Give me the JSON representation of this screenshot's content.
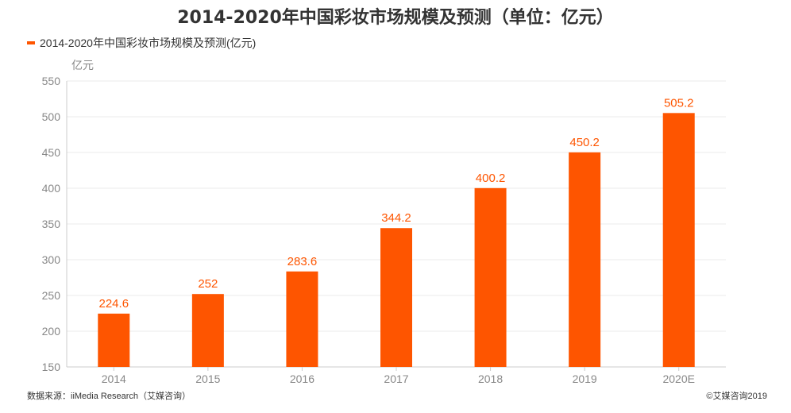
{
  "chart_data": {
    "type": "bar",
    "title": "2014-2020年中国彩妆市场规模及预测（单位：亿元）",
    "categories": [
      "2014",
      "2015",
      "2016",
      "2017",
      "2018",
      "2019",
      "2020E"
    ],
    "series": [
      {
        "name": "2014-2020年中国彩妆市场规模及预测(亿元)",
        "values": [
          224.6,
          252,
          283.6,
          344.2,
          400.2,
          450.2,
          505.2
        ],
        "labels": [
          "224.6",
          "252",
          "283.6",
          "344.2",
          "400.2",
          "450.2",
          "505.2"
        ],
        "color": "#fe5500"
      }
    ],
    "ylabel": "亿元",
    "ylim": [
      150,
      550
    ],
    "yticks": [
      "150",
      "200",
      "250",
      "300",
      "350",
      "400",
      "450",
      "500",
      "550"
    ],
    "grid": true,
    "legend_position": "top-left"
  },
  "footer": {
    "source": "数据来源：iiMedia Research（艾媒咨询）",
    "copyright": "©艾媒咨询2019"
  }
}
